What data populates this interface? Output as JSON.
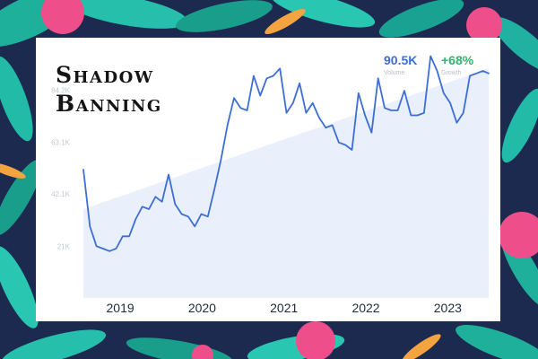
{
  "title_lines": [
    "Shadow",
    "Banning"
  ],
  "stats": {
    "volume": {
      "value": "90.5K",
      "label": "Volume"
    },
    "growth": {
      "value": "+68%",
      "label": "Growth"
    }
  },
  "colors": {
    "line": "#3d6ed6",
    "trend_fill": "#e9f0fb",
    "volume": "#3d6ed6",
    "growth": "#2fb46d"
  },
  "chart_data": {
    "type": "line",
    "ylim": [
      0,
      100000
    ],
    "y_ticks": [
      {
        "value": 21000,
        "label": "21K"
      },
      {
        "value": 42100,
        "label": "42.1K"
      },
      {
        "value": 63100,
        "label": "63.1K"
      },
      {
        "value": 84200,
        "label": "84.2K"
      }
    ],
    "x_ticks": [
      {
        "value": 2019.25,
        "label": "2019"
      },
      {
        "value": 2020.25,
        "label": "2020"
      },
      {
        "value": 2021.25,
        "label": "2021"
      },
      {
        "value": 2022.25,
        "label": "2022"
      },
      {
        "value": 2023.25,
        "label": "2023"
      }
    ],
    "trend_band": {
      "x": [
        2018.8,
        2023.75
      ],
      "y": [
        36000,
        93000
      ]
    },
    "series": [
      {
        "x": [
          2018.8,
          2018.88,
          2018.96,
          2019.04,
          2019.12,
          2019.2,
          2019.28,
          2019.36,
          2019.44,
          2019.52,
          2019.6,
          2019.68,
          2019.76,
          2019.84,
          2019.92,
          2020.0,
          2020.08,
          2020.16,
          2020.24,
          2020.32,
          2020.4,
          2020.48,
          2020.56,
          2020.64,
          2020.72,
          2020.8,
          2020.88,
          2020.96,
          2021.04,
          2021.12,
          2021.2,
          2021.28,
          2021.36,
          2021.44,
          2021.52,
          2021.6,
          2021.68,
          2021.76,
          2021.84,
          2021.92,
          2022.0,
          2022.08,
          2022.16,
          2022.24,
          2022.32,
          2022.4,
          2022.48,
          2022.56,
          2022.64,
          2022.72,
          2022.8,
          2022.88,
          2022.96,
          2023.04,
          2023.12,
          2023.2,
          2023.28,
          2023.36,
          2023.44,
          2023.52,
          2023.6,
          2023.68,
          2023.75
        ],
        "y": [
          52000,
          29000,
          21000,
          20000,
          19000,
          20000,
          25000,
          25000,
          32000,
          37000,
          36000,
          41000,
          39000,
          50000,
          38000,
          34000,
          33000,
          29000,
          34000,
          33000,
          44000,
          56000,
          70000,
          81000,
          77000,
          76000,
          90000,
          82000,
          89000,
          90000,
          93000,
          75000,
          79000,
          87000,
          75000,
          79000,
          73000,
          69000,
          70000,
          63000,
          62000,
          60000,
          83000,
          74000,
          67000,
          89000,
          77000,
          76000,
          76000,
          84000,
          74000,
          74000,
          75000,
          98000,
          92000,
          83000,
          79000,
          71000,
          75000,
          90000,
          91000,
          92000,
          91000
        ]
      }
    ]
  }
}
